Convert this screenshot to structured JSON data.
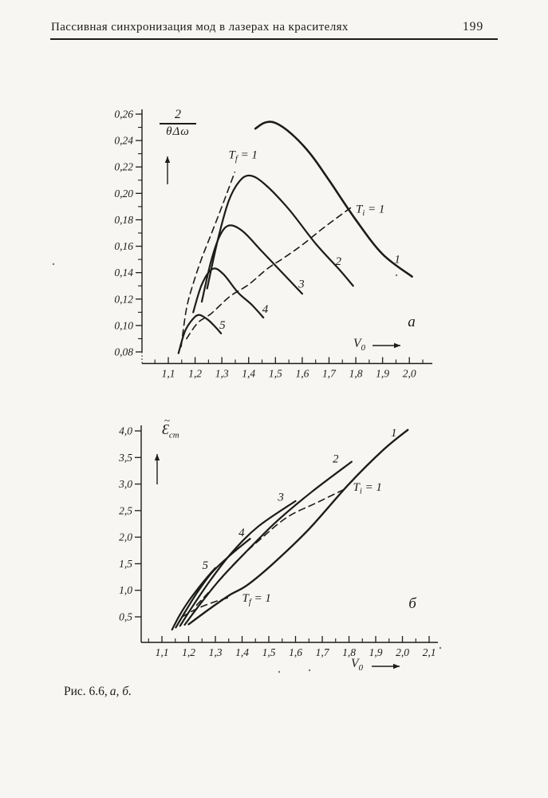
{
  "page": {
    "background": "#f7f6f2",
    "ink": "#1c1c1a"
  },
  "header": {
    "title": "Пассивная синхронизация мод в лазерах на красителях",
    "page_number": "199"
  },
  "caption": {
    "prefix": "Рис. 6.6,",
    "italic": "а, б."
  },
  "specks": [
    [
      552,
      812
    ],
    [
      497,
      345
    ],
    [
      67,
      331
    ],
    [
      350,
      842
    ],
    [
      388,
      840
    ]
  ],
  "chart_data": [
    {
      "type": "line",
      "panel_label": "а",
      "xlabel_main": "V",
      "xlabel_sub": "0",
      "ylabel_num": "2",
      "ylabel_den": "θΔω",
      "xlim": [
        1.02,
        2.09
      ],
      "ylim": [
        0.075,
        0.265
      ],
      "grid": false,
      "x_ticks": [
        {
          "v": 1.1,
          "label": "1,1"
        },
        {
          "v": 1.2,
          "label": "1,2"
        },
        {
          "v": 1.3,
          "label": "1,3"
        },
        {
          "v": 1.4,
          "label": "1,4"
        },
        {
          "v": 1.5,
          "label": "1,5"
        },
        {
          "v": 1.6,
          "label": "1,6"
        },
        {
          "v": 1.7,
          "label": "1,7"
        },
        {
          "v": 1.8,
          "label": "1,8"
        },
        {
          "v": 1.9,
          "label": "1,9"
        },
        {
          "v": 2.0,
          "label": "2,0"
        }
      ],
      "x_minor_ticks": [
        1.05,
        1.15,
        1.25,
        1.35,
        1.45,
        1.55,
        1.65,
        1.75,
        1.85,
        1.95,
        2.05
      ],
      "y_ticks": [
        {
          "v": 0.08,
          "label": "0,08"
        },
        {
          "v": 0.1,
          "label": "0,10"
        },
        {
          "v": 0.12,
          "label": "0,12"
        },
        {
          "v": 0.14,
          "label": "0,14"
        },
        {
          "v": 0.16,
          "label": "0,16"
        },
        {
          "v": 0.18,
          "label": "0,18"
        },
        {
          "v": 0.2,
          "label": "0,20"
        },
        {
          "v": 0.22,
          "label": "0,22"
        },
        {
          "v": 0.24,
          "label": "0,24"
        },
        {
          "v": 0.26,
          "label": "0,26"
        }
      ],
      "y_minor_ticks": [
        0.09,
        0.11,
        0.13,
        0.15,
        0.17,
        0.19,
        0.21,
        0.23,
        0.25
      ],
      "series": [
        {
          "name": "1",
          "style": "solid",
          "w": 2.6,
          "points": [
            [
              1.425,
              0.249
            ],
            [
              1.46,
              0.2535
            ],
            [
              1.5,
              0.2533
            ],
            [
              1.56,
              0.245
            ],
            [
              1.63,
              0.23
            ],
            [
              1.7,
              0.21
            ],
            [
              1.8,
              0.18
            ],
            [
              1.9,
              0.154
            ],
            [
              2.01,
              0.137
            ]
          ],
          "label": {
            "text": "1",
            "x": 1.955,
            "y": 0.1505,
            "anchor": "middle"
          }
        },
        {
          "name": "2",
          "style": "solid",
          "w": 2.2,
          "points": [
            [
              1.245,
              0.128
            ],
            [
              1.285,
              0.165
            ],
            [
              1.325,
              0.194
            ],
            [
              1.365,
              0.209
            ],
            [
              1.405,
              0.2135
            ],
            [
              1.46,
              0.207
            ],
            [
              1.55,
              0.188
            ],
            [
              1.65,
              0.162
            ],
            [
              1.74,
              0.142
            ],
            [
              1.79,
              0.13
            ]
          ],
          "label": {
            "text": "2",
            "x": 1.735,
            "y": 0.149,
            "anchor": "middle"
          }
        },
        {
          "name": "3",
          "style": "solid",
          "w": 2.2,
          "points": [
            [
              1.225,
              0.118
            ],
            [
              1.26,
              0.149
            ],
            [
              1.295,
              0.169
            ],
            [
              1.33,
              0.1758
            ],
            [
              1.38,
              0.171
            ],
            [
              1.45,
              0.156
            ],
            [
              1.53,
              0.139
            ],
            [
              1.6,
              0.124
            ]
          ],
          "label": {
            "text": "3",
            "x": 1.597,
            "y": 0.1315,
            "anchor": "middle"
          }
        },
        {
          "name": "4",
          "style": "solid",
          "w": 2.2,
          "points": [
            [
              1.193,
              0.11
            ],
            [
              1.225,
              0.131
            ],
            [
              1.265,
              0.1428
            ],
            [
              1.305,
              0.139
            ],
            [
              1.36,
              0.125
            ],
            [
              1.41,
              0.116
            ],
            [
              1.455,
              0.106
            ]
          ],
          "label": {
            "text": "4",
            "x": 1.462,
            "y": 0.1125,
            "anchor": "middle"
          }
        },
        {
          "name": "5",
          "style": "solid",
          "w": 2.2,
          "points": [
            [
              1.138,
              0.079
            ],
            [
              1.162,
              0.0955
            ],
            [
              1.19,
              0.1045
            ],
            [
              1.215,
              0.108
            ],
            [
              1.247,
              0.1045
            ],
            [
              1.275,
              0.099
            ],
            [
              1.297,
              0.094
            ]
          ],
          "label": {
            "text": "5",
            "x": 1.302,
            "y": 0.1005,
            "anchor": "middle"
          }
        },
        {
          "name": "Tf=1",
          "style": "dashed",
          "w": 1.6,
          "points": [
            [
              1.148,
              0.084
            ],
            [
              1.168,
              0.113
            ],
            [
              1.195,
              0.133
            ],
            [
              1.225,
              0.151
            ],
            [
              1.258,
              0.168
            ],
            [
              1.3,
              0.19
            ],
            [
              1.348,
              0.216
            ]
          ],
          "label": {
            "text": "T",
            "sub": "f",
            "rest": " = 1",
            "x": 1.325,
            "y": 0.2295,
            "anchor": "start"
          }
        },
        {
          "name": "Ti=1",
          "style": "dashed",
          "w": 1.6,
          "points": [
            [
              1.168,
              0.09
            ],
            [
              1.21,
              0.102
            ],
            [
              1.26,
              0.109
            ],
            [
              1.33,
              0.122
            ],
            [
              1.4,
              0.131
            ],
            [
              1.47,
              0.143
            ],
            [
              1.53,
              0.151
            ],
            [
              1.6,
              0.161
            ],
            [
              1.68,
              0.174
            ],
            [
              1.78,
              0.189
            ]
          ],
          "label": {
            "text": "T",
            "sub": "i",
            "rest": " = 1",
            "x": 1.8,
            "y": 0.1885,
            "anchor": "start"
          }
        }
      ]
    },
    {
      "type": "line",
      "panel_label": "б",
      "xlabel_main": "V",
      "xlabel_sub": "0",
      "ylabel_main": "Ɛ",
      "ylabel_tilde": "~",
      "ylabel_sub": "ст",
      "xlim": [
        1.02,
        2.13
      ],
      "ylim": [
        0.2,
        4.1
      ],
      "grid": false,
      "x_ticks": [
        {
          "v": 1.1,
          "label": "1,1"
        },
        {
          "v": 1.2,
          "label": "1,2"
        },
        {
          "v": 1.3,
          "label": "1,3"
        },
        {
          "v": 1.4,
          "label": "1,4"
        },
        {
          "v": 1.5,
          "label": "1,5"
        },
        {
          "v": 1.6,
          "label": "1,6"
        },
        {
          "v": 1.7,
          "label": "1,7"
        },
        {
          "v": 1.8,
          "label": "1,8"
        },
        {
          "v": 1.9,
          "label": "1,9"
        },
        {
          "v": 2.0,
          "label": "2,0"
        },
        {
          "v": 2.1,
          "label": "2,1"
        }
      ],
      "x_minor_ticks": [
        1.05,
        1.15,
        1.25,
        1.35,
        1.45,
        1.55,
        1.65,
        1.75,
        1.85,
        1.95,
        2.05
      ],
      "y_ticks": [
        {
          "v": 0.5,
          "label": "0,5"
        },
        {
          "v": 1.0,
          "label": "1,0"
        },
        {
          "v": 1.5,
          "label": "1,5"
        },
        {
          "v": 2.0,
          "label": "2,0"
        },
        {
          "v": 2.5,
          "label": "2,5"
        },
        {
          "v": 3.0,
          "label": "3,0"
        },
        {
          "v": 3.5,
          "label": "3,5"
        },
        {
          "v": 4.0,
          "label": "4,0"
        }
      ],
      "y_minor_ticks": [],
      "series": [
        {
          "name": "1",
          "style": "solid",
          "w": 2.4,
          "points": [
            [
              1.2,
              0.36
            ],
            [
              1.27,
              0.62
            ],
            [
              1.35,
              0.9
            ],
            [
              1.42,
              1.1
            ],
            [
              1.52,
              1.52
            ],
            [
              1.65,
              2.15
            ],
            [
              1.8,
              3.0
            ],
            [
              1.93,
              3.65
            ],
            [
              2.02,
              4.02
            ]
          ],
          "label": {
            "text": "1",
            "x": 1.968,
            "y": 3.97,
            "anchor": "middle"
          }
        },
        {
          "name": "2",
          "style": "solid",
          "w": 2.2,
          "points": [
            [
              1.185,
              0.35
            ],
            [
              1.24,
              0.72
            ],
            [
              1.32,
              1.22
            ],
            [
              1.42,
              1.75
            ],
            [
              1.53,
              2.3
            ],
            [
              1.66,
              2.85
            ],
            [
              1.81,
              3.42
            ]
          ],
          "label": {
            "text": "2",
            "x": 1.75,
            "y": 3.48,
            "anchor": "middle"
          }
        },
        {
          "name": "3",
          "style": "solid",
          "w": 2.2,
          "points": [
            [
              1.168,
              0.33
            ],
            [
              1.215,
              0.7
            ],
            [
              1.28,
              1.18
            ],
            [
              1.36,
              1.7
            ],
            [
              1.46,
              2.2
            ],
            [
              1.6,
              2.68
            ]
          ],
          "label": {
            "text": "3",
            "x": 1.545,
            "y": 2.76,
            "anchor": "middle"
          }
        },
        {
          "name": "4",
          "style": "solid",
          "w": 2.2,
          "points": [
            [
              1.152,
              0.3
            ],
            [
              1.19,
              0.62
            ],
            [
              1.235,
              0.98
            ],
            [
              1.29,
              1.35
            ],
            [
              1.36,
              1.68
            ],
            [
              1.43,
              1.97
            ]
          ],
          "label": {
            "text": "4",
            "x": 1.398,
            "y": 2.09,
            "anchor": "middle"
          }
        },
        {
          "name": "5",
          "style": "solid",
          "w": 2.2,
          "points": [
            [
              1.138,
              0.26
            ],
            [
              1.165,
              0.52
            ],
            [
              1.195,
              0.76
            ],
            [
              1.23,
              1.0
            ],
            [
              1.265,
              1.22
            ],
            [
              1.3,
              1.42
            ]
          ],
          "label": {
            "text": "5",
            "x": 1.262,
            "y": 1.48,
            "anchor": "middle"
          }
        },
        {
          "name": "Ti=1",
          "style": "dashed",
          "w": 1.6,
          "points": [
            [
              1.23,
              0.72
            ],
            [
              1.3,
              1.1
            ],
            [
              1.38,
              1.55
            ],
            [
              1.47,
              1.97
            ],
            [
              1.57,
              2.38
            ],
            [
              1.68,
              2.65
            ],
            [
              1.79,
              2.92
            ]
          ],
          "label": {
            "text": "T",
            "sub": "i",
            "rest": " = 1",
            "x": 1.815,
            "y": 2.95,
            "anchor": "start"
          }
        },
        {
          "name": "Tf=1",
          "style": "dashed",
          "w": 1.6,
          "points": [
            [
              1.175,
              0.5
            ],
            [
              1.23,
              0.65
            ],
            [
              1.29,
              0.77
            ],
            [
              1.36,
              0.88
            ]
          ],
          "label": {
            "text": "T",
            "sub": "f",
            "rest": " = 1",
            "x": 1.4,
            "y": 0.86,
            "anchor": "start"
          }
        }
      ]
    }
  ]
}
